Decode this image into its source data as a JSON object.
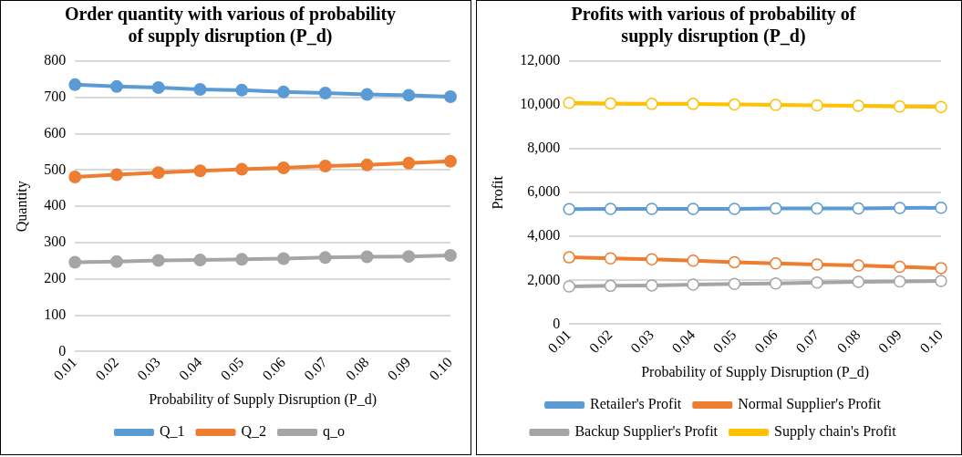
{
  "chart_data": [
    {
      "type": "line",
      "title": "Order quantity with various of probability of supply disruption (P_d)",
      "xlabel": "Probability of Supply Disruption (P_d)",
      "ylabel": "Quantity",
      "categories": [
        "0.01",
        "0.02",
        "0.03",
        "0.04",
        "0.05",
        "0.06",
        "0.07",
        "0.08",
        "0.09",
        "0.10"
      ],
      "series": [
        {
          "name": "Q_1",
          "color": "#5b9bd5",
          "values": [
            735,
            730,
            727,
            722,
            720,
            715,
            712,
            708,
            706,
            702
          ]
        },
        {
          "name": "Q_2",
          "color": "#ed7d31",
          "values": [
            481,
            487,
            493,
            498,
            502,
            506,
            511,
            514,
            519,
            524
          ]
        },
        {
          "name": "q_o",
          "color": "#a5a5a5",
          "values": [
            246,
            248,
            251,
            252,
            254,
            256,
            259,
            261,
            262,
            265
          ]
        }
      ],
      "ylim": [
        0,
        800
      ],
      "yticks": [
        0,
        100,
        200,
        300,
        400,
        500,
        600,
        700,
        800
      ],
      "grid": "y",
      "legend": "bottom",
      "marker": "circle"
    },
    {
      "type": "line",
      "title": "Profits with various of probability of supply disruption (P_d)",
      "xlabel": "Probability of Supply Disruption (P_d)",
      "ylabel": "Profit",
      "categories": [
        "0.01",
        "0.02",
        "0.03",
        "0.04",
        "0.05",
        "0.06",
        "0.07",
        "0.08",
        "0.09",
        "0.10"
      ],
      "series": [
        {
          "name": "Retailer's Profit",
          "color": "#5b9bd5",
          "values": [
            5250,
            5260,
            5260,
            5260,
            5260,
            5280,
            5280,
            5280,
            5300,
            5310
          ]
        },
        {
          "name": "Normal Supplier's Profit",
          "color": "#ed7d31",
          "values": [
            3050,
            3000,
            2960,
            2900,
            2830,
            2770,
            2720,
            2680,
            2620,
            2560
          ]
        },
        {
          "name": "Backup Supplier's Profit",
          "color": "#a5a5a5",
          "values": [
            1720,
            1750,
            1770,
            1810,
            1840,
            1860,
            1900,
            1930,
            1950,
            1970
          ]
        },
        {
          "name": "Supply chain's Profit",
          "color": "#ffc000",
          "values": [
            10100,
            10070,
            10050,
            10050,
            10020,
            10000,
            9980,
            9960,
            9930,
            9910
          ]
        }
      ],
      "ylim": [
        0,
        12000
      ],
      "yticks": [
        0,
        {
          "value": 2000,
          "label": "2,000"
        },
        {
          "value": 4000,
          "label": "4,000"
        },
        {
          "value": 6000,
          "label": "6,000"
        },
        {
          "value": 8000,
          "label": "8,000"
        },
        {
          "value": 10000,
          "label": "10,000"
        },
        {
          "value": 12000,
          "label": "12,000"
        }
      ],
      "grid": "y",
      "legend": "bottom",
      "marker": "circle"
    }
  ]
}
